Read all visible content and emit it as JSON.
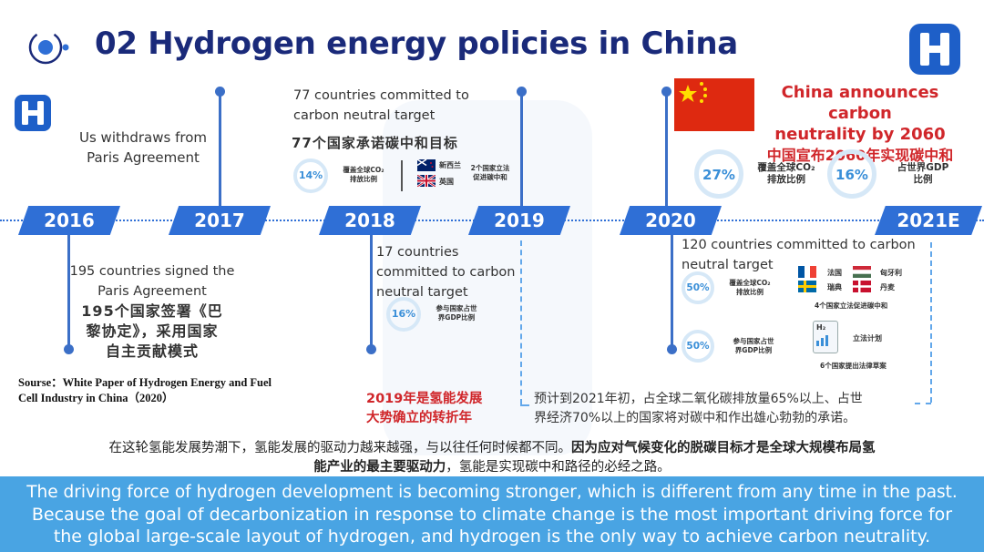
{
  "header": {
    "title": "02 Hydrogen energy  policies in China",
    "logo_left_letter": "H",
    "logo_right_letter": "H"
  },
  "timeline": {
    "years": [
      "2016",
      "2017",
      "2018",
      "2019",
      "2020",
      "2021E"
    ]
  },
  "events": {
    "e2017": {
      "text1": "Us withdraws from",
      "text2": "Paris Agreement"
    },
    "e2016": {
      "en1": "195 countries signed the",
      "en2": "Paris Agreement",
      "cn1": "195个国家签署《巴",
      "cn2": "黎协定》，采用国家",
      "cn3": "自主贡献模式"
    },
    "e2018_top": {
      "en1": "77 countries committed to",
      "en2": "carbon neutral target",
      "cn": "77个国家承诺碳中和目标",
      "ring_value": "14%",
      "ring_label1": "覆盖全球CO₂",
      "ring_label2": "排放比例",
      "flag1": "新西兰",
      "flag2": "英国",
      "flags_label1": "2个国家立法",
      "flags_label2": "促进碳中和"
    },
    "e2018_bottom": {
      "en1": "17 countries",
      "en2": "committed to carbon",
      "en3": "neutral target",
      "ring_value": "16%",
      "ring_label1": "参与国家占世",
      "ring_label2": "界GDP比例"
    },
    "e2020_top": {
      "en1": "China announces carbon",
      "en2": "neutrality by 2060",
      "cn": "中国宣布2060年实现碳中和",
      "ring1_value": "27%",
      "ring1_label1": "覆盖全球CO₂",
      "ring1_label2": "排放比例",
      "ring2_value": "16%",
      "ring2_label1": "占世界GDP",
      "ring2_label2": "比例"
    },
    "e2020_bottom": {
      "en1": "120 countries committed to carbon",
      "en2": "neutral target",
      "ring1_value": "50%",
      "ring1_label1": "覆盖全球CO₂",
      "ring1_label2": "排放比例",
      "flag_fr": "法国",
      "flag_hu": "匈牙利",
      "flag_se": "瑞典",
      "flag_dk": "丹麦",
      "flags_label": "4个国家立法促进碳中和",
      "ring2_value": "50%",
      "ring2_label1": "参与国家占世",
      "ring2_label2": "界GDP比例",
      "doc_label": "H₂",
      "plan_label": "立法计划",
      "plan_caption": "6个国家提出法律草案"
    }
  },
  "source": {
    "line1": "Sourse：White Paper of Hydrogen Energy and Fuel",
    "line2": "Cell Industry in China（2020）"
  },
  "notes": {
    "n2019_1": "2019年是氢能发展",
    "n2019_2": "大势确立的转折年",
    "n2021_1": "预计到2021年初，占全球二氧化碳排放量65%以上、占世",
    "n2021_2": "界经济70%以上的国家将对碳中和作出雄心勃勃的承诺。"
  },
  "summary_cn": {
    "part1": "在这轮氢能发展势潮下，氢能发展的驱动力越来越强，与以往任何时候都不同。",
    "part2": "因为应对气候变化的脱碳目标才是全球大规模布局氢",
    "part3": "能产业的最主要驱动力",
    "part4": "，氢能是实现碳中和路径的必经之路。"
  },
  "summary_en": {
    "line1": "The driving force of hydrogen development is becoming stronger, which is different from any time in the past.",
    "line2": "Because the goal of decarbonization in response to climate change is the most important driving force for",
    "line3": "the global large-scale layout of hydrogen, and hydrogen is the only way to achieve carbon neutrality."
  },
  "colors": {
    "primary": "#2f6fd6",
    "title": "#1a2a7a",
    "accent_red": "#d0262a",
    "ring": "#3a8fd8",
    "bottom_bar": "#49a4e3"
  }
}
